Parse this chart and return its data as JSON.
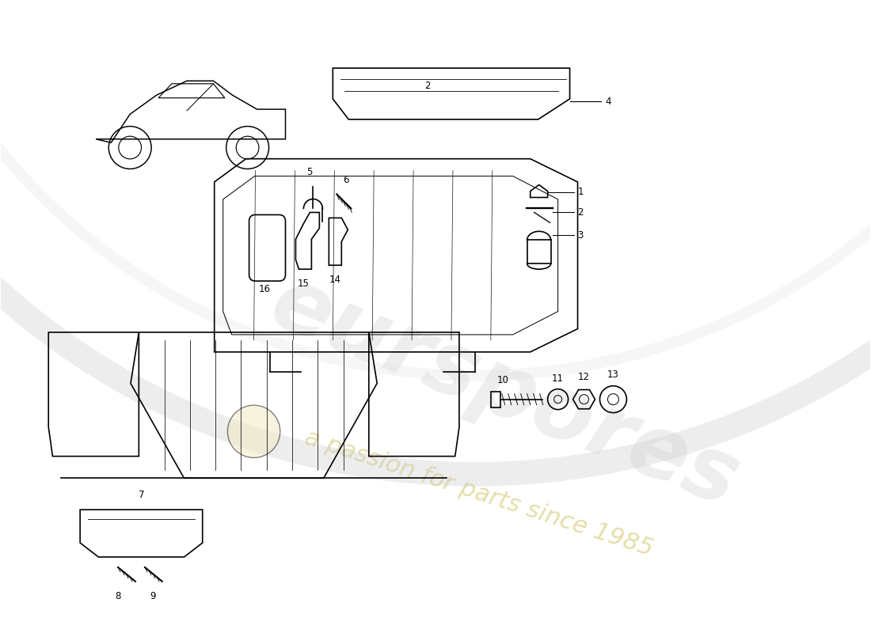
{
  "background_color": "#ffffff",
  "watermark_color1": "#c8c8c8",
  "watermark_color2": "#d4c870",
  "line_color": "#000000",
  "label_fontsize": 8.5
}
